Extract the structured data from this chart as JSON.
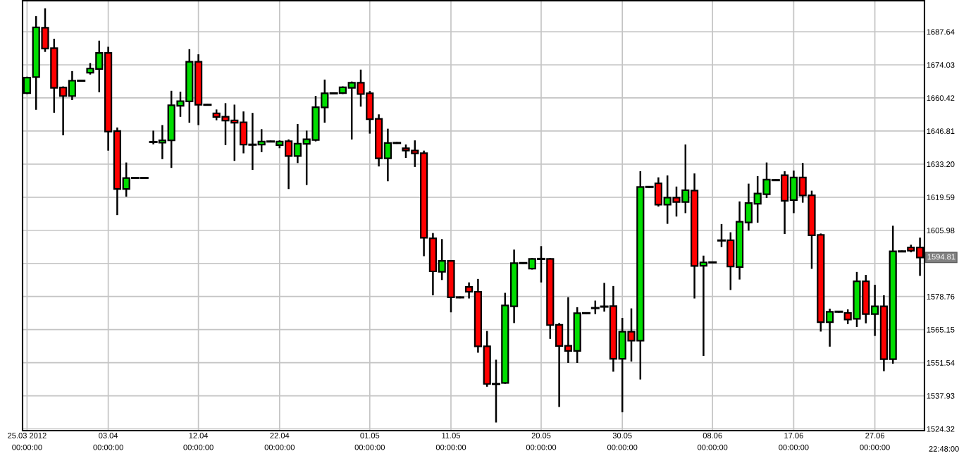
{
  "chart_data": {
    "type": "candlestick",
    "categories": [
      "25.03 2012",
      null,
      null,
      null,
      null,
      null,
      null,
      null,
      null,
      "03.04",
      null,
      null,
      null,
      null,
      null,
      null,
      null,
      null,
      null,
      "12.04",
      null,
      null,
      null,
      null,
      null,
      null,
      null,
      null,
      "22.04",
      null,
      null,
      null,
      null,
      null,
      null,
      null,
      null,
      null,
      "01.05",
      null,
      null,
      null,
      null,
      null,
      null,
      null,
      null,
      "11.05",
      null,
      null,
      null,
      null,
      null,
      null,
      null,
      null,
      null,
      "20.05",
      null,
      null,
      null,
      null,
      null,
      null,
      null,
      null,
      "30.05",
      null,
      null,
      null,
      null,
      null,
      null,
      null,
      null,
      null,
      "08.06",
      null,
      null,
      null,
      null,
      null,
      null,
      null,
      null,
      "17.06",
      null,
      null,
      null,
      null,
      null,
      null,
      null,
      null,
      "27.06",
      null,
      null,
      null,
      null,
      null
    ],
    "ohlc": [
      [
        1662.4,
        1668.8,
        1662.4,
        1668.8
      ],
      [
        1669.0,
        1693.7,
        1655.9,
        1689.4
      ],
      [
        1689.3,
        1696.9,
        1679.7,
        1680.7
      ],
      [
        1680.9,
        1684.4,
        1654.7,
        1664.6
      ],
      [
        1664.7,
        1664.8,
        1645.4,
        1661.2
      ],
      [
        1661.2,
        1671.1,
        1659.9,
        1667.5
      ],
      [
        1667.5,
        1667.5,
        1667.5,
        1667.5
      ],
      [
        1670.8,
        1674.4,
        1670.4,
        1672.5
      ],
      [
        1672.3,
        1683.6,
        1663.1,
        1678.9
      ],
      [
        1678.9,
        1681.1,
        1639.1,
        1646.6
      ],
      [
        1646.8,
        1647.9,
        1612.6,
        1623.0
      ],
      [
        1623.0,
        1633.5,
        1620.2,
        1627.5
      ],
      [
        1627.5,
        1627.5,
        1627.5,
        1627.5
      ],
      [
        1627.5,
        1627.5,
        1627.5,
        1627.5
      ],
      [
        1642.3,
        1646.6,
        1641.7,
        1642.3
      ],
      [
        1642.0,
        1648.9,
        1635.6,
        1643.0
      ],
      [
        1643.0,
        1663.0,
        1632.0,
        1657.4
      ],
      [
        1657.2,
        1662.6,
        1653.0,
        1659.1
      ],
      [
        1659.0,
        1680.1,
        1650.6,
        1675.3
      ],
      [
        1675.3,
        1678.0,
        1649.6,
        1657.6
      ],
      [
        1657.6,
        1657.6,
        1657.6,
        1657.6
      ],
      [
        1654.1,
        1655.3,
        1651.6,
        1652.6
      ],
      [
        1652.7,
        1657.9,
        1641.4,
        1651.1
      ],
      [
        1651.2,
        1657.3,
        1634.9,
        1650.2
      ],
      [
        1650.4,
        1654.5,
        1638.0,
        1641.2
      ],
      [
        1641.2,
        1653.9,
        1631.2,
        1641.2
      ],
      [
        1641.2,
        1647.2,
        1638.5,
        1642.5
      ],
      [
        1642.5,
        1642.5,
        1642.5,
        1642.5
      ],
      [
        1641.0,
        1642.6,
        1640.1,
        1642.5
      ],
      [
        1642.6,
        1643.0,
        1623.3,
        1636.5
      ],
      [
        1636.5,
        1649.3,
        1634.0,
        1641.6
      ],
      [
        1641.5,
        1646.6,
        1625.0,
        1643.4
      ],
      [
        1643.1,
        1660.9,
        1642.9,
        1656.6
      ],
      [
        1656.5,
        1667.6,
        1650.6,
        1662.3
      ],
      [
        1662.3,
        1662.3,
        1662.3,
        1662.3
      ],
      [
        1662.4,
        1664.8,
        1662.4,
        1664.8
      ],
      [
        1664.6,
        1666.8,
        1643.7,
        1666.7
      ],
      [
        1666.7,
        1671.7,
        1657.2,
        1662.0
      ],
      [
        1662.3,
        1662.9,
        1646.1,
        1651.7
      ],
      [
        1651.8,
        1653.3,
        1632.6,
        1635.6
      ],
      [
        1635.6,
        1647.4,
        1626.5,
        1641.9
      ],
      [
        1641.9,
        1641.9,
        1641.9,
        1641.9
      ],
      [
        1639.7,
        1640.9,
        1636.1,
        1638.8
      ],
      [
        1638.8,
        1642.6,
        1632.4,
        1637.6
      ],
      [
        1637.7,
        1638.4,
        1595.7,
        1602.9
      ],
      [
        1602.7,
        1604.5,
        1579.6,
        1589.1
      ],
      [
        1588.9,
        1602.0,
        1585.9,
        1593.4
      ],
      [
        1593.4,
        1593.4,
        1572.6,
        1578.4
      ],
      [
        1578.4,
        1578.4,
        1578.4,
        1578.4
      ],
      [
        1582.7,
        1584.2,
        1578.3,
        1580.7
      ],
      [
        1580.7,
        1585.6,
        1556.0,
        1558.3
      ],
      [
        1558.3,
        1564.2,
        1542.0,
        1542.8
      ],
      [
        1542.8,
        1552.4,
        1527.3,
        1542.8
      ],
      [
        1543.2,
        1579.9,
        1543.2,
        1575.1
      ],
      [
        1574.7,
        1597.7,
        1568.2,
        1592.5
      ],
      [
        1592.5,
        1592.5,
        1592.5,
        1592.5
      ],
      [
        1590.2,
        1594.2,
        1590.2,
        1594.2
      ],
      [
        1594.2,
        1599.1,
        1584.9,
        1594.2
      ],
      [
        1594.2,
        1594.2,
        1561.7,
        1567.0
      ],
      [
        1567.1,
        1567.5,
        1533.7,
        1558.4
      ],
      [
        1558.5,
        1578.1,
        1551.8,
        1556.4
      ],
      [
        1556.4,
        1574.0,
        1551.8,
        1571.9
      ],
      [
        1571.9,
        1571.9,
        1571.9,
        1571.9
      ],
      [
        1574.0,
        1576.7,
        1571.9,
        1574.0
      ],
      [
        1574.6,
        1584.0,
        1572.9,
        1574.6
      ],
      [
        1574.8,
        1582.7,
        1548.2,
        1553.1
      ],
      [
        1553.1,
        1569.6,
        1531.5,
        1564.3
      ],
      [
        1564.3,
        1573.5,
        1552.4,
        1560.6
      ],
      [
        1560.6,
        1629.9,
        1545.0,
        1623.8
      ],
      [
        1623.8,
        1623.8,
        1623.8,
        1623.8
      ],
      [
        1625.3,
        1627.4,
        1616.1,
        1616.5
      ],
      [
        1616.5,
        1628.2,
        1609.0,
        1619.4
      ],
      [
        1619.4,
        1623.6,
        1612.0,
        1617.6
      ],
      [
        1617.6,
        1640.9,
        1613.4,
        1622.5
      ],
      [
        1622.3,
        1629.0,
        1578.3,
        1591.3
      ],
      [
        1591.4,
        1595.2,
        1554.7,
        1592.8
      ],
      [
        1592.8,
        1592.8,
        1592.8,
        1592.8
      ],
      [
        1601.8,
        1608.2,
        1599.5,
        1601.8
      ],
      [
        1601.9,
        1604.8,
        1581.8,
        1591.1
      ],
      [
        1590.9,
        1617.5,
        1586.1,
        1609.5
      ],
      [
        1609.2,
        1624.8,
        1606.2,
        1617.2
      ],
      [
        1616.9,
        1627.9,
        1609.5,
        1621.1
      ],
      [
        1620.8,
        1633.5,
        1619.6,
        1626.8
      ],
      [
        1626.6,
        1626.6,
        1626.6,
        1626.6
      ],
      [
        1628.6,
        1629.9,
        1604.8,
        1618.1
      ],
      [
        1618.4,
        1630.2,
        1613.4,
        1627.7
      ],
      [
        1627.7,
        1633.3,
        1617.7,
        1620.3
      ],
      [
        1620.4,
        1621.9,
        1590.5,
        1603.9
      ],
      [
        1604.1,
        1604.3,
        1564.7,
        1568.2
      ],
      [
        1568.2,
        1573.4,
        1558.5,
        1572.5
      ],
      [
        1572.5,
        1572.5,
        1572.5,
        1572.5
      ],
      [
        1572.0,
        1573.1,
        1567.8,
        1569.3
      ],
      [
        1569.6,
        1588.5,
        1566.6,
        1585.0
      ],
      [
        1585.0,
        1587.3,
        1568.1,
        1571.5
      ],
      [
        1571.5,
        1583.2,
        1562.9,
        1574.7
      ],
      [
        1574.7,
        1578.9,
        1548.4,
        1553.0
      ],
      [
        1553.0,
        1607.5,
        1551.5,
        1597.3
      ],
      [
        1597.3,
        1597.3,
        1597.3,
        1597.3
      ],
      [
        1598.9,
        1599.7,
        1597.3,
        1597.6
      ],
      [
        1598.9,
        1602.6,
        1587.6,
        1594.81
      ]
    ],
    "colors": [
      "#00dd00",
      "#00dd00",
      "#ff0000",
      "#ff0000",
      "#ff0000",
      "#00dd00",
      "#000000",
      "#00dd00",
      "#00dd00",
      "#ff0000",
      "#ff0000",
      "#00dd00",
      "#000000",
      "#000000",
      "#000000",
      "#00dd00",
      "#00dd00",
      "#00dd00",
      "#00dd00",
      "#ff0000",
      "#000000",
      "#ff0000",
      "#ff0000",
      "#ff0000",
      "#ff0000",
      "#000000",
      "#00dd00",
      "#000000",
      "#00dd00",
      "#ff0000",
      "#00dd00",
      "#00dd00",
      "#00dd00",
      "#00dd00",
      "#000000",
      "#00dd00",
      "#00dd00",
      "#ff0000",
      "#ff0000",
      "#ff0000",
      "#00dd00",
      "#000000",
      "#ff0000",
      "#ff0000",
      "#ff0000",
      "#ff0000",
      "#00dd00",
      "#ff0000",
      "#000000",
      "#ff0000",
      "#ff0000",
      "#ff0000",
      "#000000",
      "#00dd00",
      "#00dd00",
      "#000000",
      "#00dd00",
      "#000000",
      "#ff0000",
      "#ff0000",
      "#ff0000",
      "#00dd00",
      "#000000",
      "#000000",
      "#000000",
      "#ff0000",
      "#00dd00",
      "#ff0000",
      "#00dd00",
      "#000000",
      "#ff0000",
      "#00dd00",
      "#ff0000",
      "#00dd00",
      "#ff0000",
      "#00dd00",
      "#000000",
      "#000000",
      "#ff0000",
      "#00dd00",
      "#00dd00",
      "#00dd00",
      "#00dd00",
      "#000000",
      "#ff0000",
      "#00dd00",
      "#ff0000",
      "#ff0000",
      "#ff0000",
      "#00dd00",
      "#000000",
      "#ff0000",
      "#00dd00",
      "#ff0000",
      "#00dd00",
      "#ff0000",
      "#00dd00",
      "#000000",
      "#ff0000",
      "#ff0000"
    ],
    "ylim": [
      1523.6,
      1700.4
    ],
    "yticks": [
      1524.32,
      1537.93,
      1551.54,
      1565.15,
      1578.76,
      {
        "value": 1592.37,
        "label": null
      },
      1605.98,
      1619.59,
      {
        "value": 1633.2,
        "label": "1633.20"
      },
      1646.81,
      1660.42,
      1674.03,
      1687.64
    ],
    "annotations": [
      "1594.81",
      "22:48:00",
      "00:00:00",
      "00:00:00",
      "00:00:00",
      "00:00:00",
      "00:00:00",
      "00:00:00",
      "00:00:00",
      "00:00:00",
      "00:00:00",
      "00:00:00",
      "00:00:00"
    ],
    "grid": true
  }
}
